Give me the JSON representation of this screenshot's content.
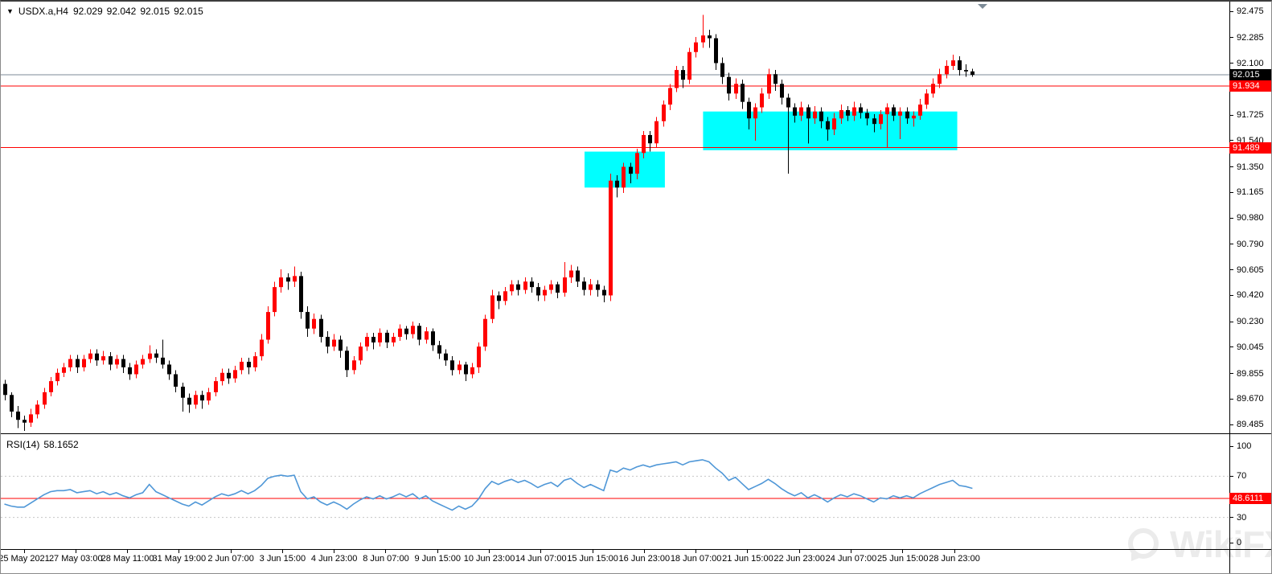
{
  "window": {
    "bg": "#ffffff"
  },
  "colors": {
    "bull": "#ff0000",
    "bear": "#000000",
    "zone_fill": "#00ffff",
    "price_line": "#7d8b97",
    "alert_line": "#ff0000",
    "rsi_line": "#4f97d7",
    "level_dash": "#c6c6c6",
    "axis_text": "#000000",
    "tag_text": "#ffffff",
    "watermark": "#ebebeb"
  },
  "title_overlay": {
    "dropdown_icon": "▼",
    "symbol": "USDX.a,H4",
    "open": "92.029",
    "high": "92.042",
    "low": "92.015",
    "close": "92.015"
  },
  "rsi_overlay": {
    "label": "RSI(14)",
    "value": "58.1652"
  },
  "watermark": {
    "text": "WikiFX"
  },
  "y_axis": {
    "ticks": [
      "92.475",
      "92.285",
      "92.100",
      "91.910",
      "91.725",
      "91.540",
      "91.350",
      "91.165",
      "90.980",
      "90.790",
      "90.605",
      "90.420",
      "90.230",
      "90.045",
      "89.855",
      "89.670",
      "89.485"
    ],
    "tags": [
      {
        "label": "92.015",
        "value": 92.015,
        "bg": "#000000"
      },
      {
        "label": "91.934",
        "value": 91.934,
        "bg": "#ff0000"
      },
      {
        "label": "91.489",
        "value": 91.489,
        "bg": "#ff0000"
      }
    ]
  },
  "rsi_axis": {
    "ticks": [
      "100",
      "70",
      "30",
      "0"
    ],
    "tag": {
      "label": "48.6111",
      "value": 48.6111,
      "bg": "#ff0000"
    }
  },
  "x_axis": {
    "labels": [
      "25 May 2021",
      "27 May 03:00",
      "28 May 11:00",
      "31 May 19:00",
      "2 Jun 07:00",
      "3 Jun 15:00",
      "4 Jun 23:00",
      "8 Jun 07:00",
      "9 Jun 15:00",
      "10 Jun 23:00",
      "14 Jun 07:00",
      "15 Jun 15:00",
      "16 Jun 23:00",
      "18 Jun 07:00",
      "21 Jun 15:00",
      "22 Jun 23:00",
      "24 Jun 07:00",
      "25 Jun 15:00",
      "28 Jun 23:00"
    ]
  },
  "chart_data": [
    {
      "type": "candlestick",
      "title": "USDX.a H4",
      "timeframe": "H4",
      "price_axis_range": [
        89.44,
        92.52
      ],
      "bar_count": 148,
      "series_ohlc": [
        [
          89.78,
          89.81,
          89.66,
          89.7
        ],
        [
          89.7,
          89.72,
          89.54,
          89.58
        ],
        [
          89.58,
          89.62,
          89.46,
          89.52
        ],
        [
          89.52,
          89.55,
          89.44,
          89.5
        ],
        [
          89.5,
          89.6,
          89.47,
          89.56
        ],
        [
          89.56,
          89.66,
          89.53,
          89.63
        ],
        [
          89.63,
          89.75,
          89.6,
          89.72
        ],
        [
          89.72,
          89.83,
          89.69,
          89.8
        ],
        [
          89.8,
          89.89,
          89.77,
          89.86
        ],
        [
          89.86,
          89.93,
          89.83,
          89.9
        ],
        [
          89.9,
          89.99,
          89.87,
          89.96
        ],
        [
          89.96,
          89.99,
          89.86,
          89.9
        ],
        [
          89.9,
          89.99,
          89.87,
          89.96
        ],
        [
          89.96,
          90.03,
          89.93,
          90.0
        ],
        [
          90.0,
          90.03,
          89.91,
          89.95
        ],
        [
          89.95,
          90.02,
          89.92,
          89.98
        ],
        [
          89.98,
          90.01,
          89.88,
          89.92
        ],
        [
          89.92,
          89.99,
          89.89,
          89.96
        ],
        [
          89.96,
          89.99,
          89.86,
          89.9
        ],
        [
          89.9,
          89.93,
          89.81,
          89.85
        ],
        [
          89.85,
          89.95,
          89.82,
          89.92
        ],
        [
          89.92,
          89.99,
          89.89,
          89.96
        ],
        [
          89.96,
          90.06,
          89.93,
          90.0
        ],
        [
          90.0,
          90.03,
          89.93,
          89.97
        ],
        [
          89.97,
          90.1,
          89.89,
          89.92
        ],
        [
          89.92,
          89.95,
          89.81,
          89.85
        ],
        [
          89.85,
          89.88,
          89.72,
          89.76
        ],
        [
          89.76,
          89.79,
          89.58,
          89.68
        ],
        [
          89.68,
          89.71,
          89.57,
          89.63
        ],
        [
          89.63,
          89.73,
          89.6,
          89.7
        ],
        [
          89.7,
          89.73,
          89.6,
          89.66
        ],
        [
          89.66,
          89.75,
          89.63,
          89.72
        ],
        [
          89.72,
          89.83,
          89.69,
          89.8
        ],
        [
          89.8,
          89.89,
          89.77,
          89.86
        ],
        [
          89.86,
          89.89,
          89.78,
          89.82
        ],
        [
          89.82,
          89.91,
          89.79,
          89.88
        ],
        [
          89.88,
          89.97,
          89.85,
          89.94
        ],
        [
          89.94,
          89.97,
          89.85,
          89.9
        ],
        [
          89.9,
          90.01,
          89.87,
          89.98
        ],
        [
          89.98,
          90.14,
          89.95,
          90.1
        ],
        [
          90.1,
          90.34,
          90.07,
          90.3
        ],
        [
          90.3,
          90.52,
          90.27,
          90.48
        ],
        [
          90.48,
          90.61,
          90.44,
          90.55
        ],
        [
          90.55,
          90.58,
          90.46,
          90.52
        ],
        [
          90.52,
          90.63,
          90.48,
          90.56
        ],
        [
          90.56,
          90.59,
          90.25,
          90.3
        ],
        [
          90.3,
          90.34,
          90.12,
          90.18
        ],
        [
          90.18,
          90.29,
          90.14,
          90.25
        ],
        [
          90.25,
          90.28,
          90.08,
          90.12
        ],
        [
          90.12,
          90.16,
          90.0,
          90.05
        ],
        [
          90.05,
          90.14,
          90.02,
          90.1
        ],
        [
          90.1,
          90.13,
          89.97,
          90.02
        ],
        [
          90.02,
          90.05,
          89.83,
          89.88
        ],
        [
          89.88,
          89.98,
          89.85,
          89.95
        ],
        [
          89.95,
          90.08,
          89.92,
          90.05
        ],
        [
          90.05,
          90.15,
          90.02,
          90.12
        ],
        [
          90.12,
          90.15,
          90.03,
          90.08
        ],
        [
          90.08,
          90.18,
          90.05,
          90.15
        ],
        [
          90.15,
          90.17,
          90.04,
          90.08
        ],
        [
          90.08,
          90.15,
          90.05,
          90.12
        ],
        [
          90.12,
          90.21,
          90.09,
          90.18
        ],
        [
          90.18,
          90.2,
          90.1,
          90.14
        ],
        [
          90.14,
          90.23,
          90.11,
          90.2
        ],
        [
          90.2,
          90.22,
          90.06,
          90.1
        ],
        [
          90.1,
          90.19,
          90.07,
          90.16
        ],
        [
          90.16,
          90.18,
          90.02,
          90.06
        ],
        [
          90.06,
          90.09,
          89.96,
          90.0
        ],
        [
          90.0,
          90.03,
          89.91,
          89.95
        ],
        [
          89.95,
          89.98,
          89.84,
          89.88
        ],
        [
          89.88,
          89.95,
          89.85,
          89.92
        ],
        [
          89.92,
          89.94,
          89.8,
          89.85
        ],
        [
          89.85,
          89.93,
          89.82,
          89.9
        ],
        [
          89.9,
          90.08,
          89.86,
          90.05
        ],
        [
          90.05,
          90.28,
          90.02,
          90.25
        ],
        [
          90.25,
          90.46,
          90.22,
          90.42
        ],
        [
          90.42,
          90.45,
          90.32,
          90.38
        ],
        [
          90.38,
          90.48,
          90.35,
          90.45
        ],
        [
          90.45,
          90.53,
          90.42,
          90.5
        ],
        [
          90.5,
          90.53,
          90.42,
          90.46
        ],
        [
          90.46,
          90.55,
          90.43,
          90.52
        ],
        [
          90.52,
          90.55,
          90.44,
          90.48
        ],
        [
          90.48,
          90.51,
          90.38,
          90.42
        ],
        [
          90.42,
          90.49,
          90.38,
          90.46
        ],
        [
          90.46,
          90.53,
          90.43,
          90.5
        ],
        [
          90.5,
          90.52,
          90.4,
          90.44
        ],
        [
          90.44,
          90.66,
          90.41,
          90.55
        ],
        [
          90.55,
          90.64,
          90.51,
          90.6
        ],
        [
          90.6,
          90.63,
          90.48,
          90.52
        ],
        [
          90.52,
          90.55,
          90.42,
          90.46
        ],
        [
          90.46,
          90.54,
          90.42,
          90.5
        ],
        [
          90.5,
          90.53,
          90.41,
          90.46
        ],
        [
          90.46,
          90.49,
          90.37,
          90.42
        ],
        [
          90.42,
          91.3,
          90.38,
          91.25
        ],
        [
          91.25,
          91.29,
          91.13,
          91.2
        ],
        [
          91.2,
          91.38,
          91.16,
          91.35
        ],
        [
          91.35,
          91.38,
          91.23,
          91.3
        ],
        [
          91.3,
          91.48,
          91.26,
          91.45
        ],
        [
          91.45,
          91.61,
          91.41,
          91.58
        ],
        [
          91.58,
          91.61,
          91.46,
          91.52
        ],
        [
          91.52,
          91.71,
          91.49,
          91.68
        ],
        [
          91.68,
          91.83,
          91.64,
          91.8
        ],
        [
          91.8,
          91.95,
          91.76,
          91.92
        ],
        [
          91.92,
          92.08,
          91.89,
          92.05
        ],
        [
          92.05,
          92.08,
          91.92,
          91.98
        ],
        [
          91.98,
          92.21,
          91.95,
          92.18
        ],
        [
          92.18,
          92.29,
          92.14,
          92.25
        ],
        [
          92.25,
          92.45,
          92.21,
          92.3
        ],
        [
          92.3,
          92.34,
          92.21,
          92.28
        ],
        [
          92.28,
          92.31,
          92.05,
          92.1
        ],
        [
          92.1,
          92.14,
          91.95,
          92.0
        ],
        [
          92.0,
          92.03,
          91.83,
          91.88
        ],
        [
          91.88,
          91.99,
          91.84,
          91.95
        ],
        [
          91.95,
          91.98,
          91.77,
          91.82
        ],
        [
          91.82,
          91.85,
          91.62,
          91.7
        ],
        [
          91.7,
          91.81,
          91.54,
          91.78
        ],
        [
          91.78,
          91.92,
          91.74,
          91.88
        ],
        [
          91.88,
          92.06,
          91.84,
          92.02
        ],
        [
          92.02,
          92.05,
          91.9,
          91.95
        ],
        [
          91.95,
          91.98,
          91.8,
          91.85
        ],
        [
          91.85,
          91.88,
          91.3,
          91.78
        ],
        [
          91.78,
          91.81,
          91.67,
          91.72
        ],
        [
          91.72,
          91.82,
          91.68,
          91.78
        ],
        [
          91.78,
          91.8,
          91.52,
          91.7
        ],
        [
          91.7,
          91.79,
          91.66,
          91.75
        ],
        [
          91.75,
          91.78,
          91.63,
          91.68
        ],
        [
          91.68,
          91.71,
          91.54,
          91.62
        ],
        [
          91.62,
          91.74,
          91.58,
          91.7
        ],
        [
          91.7,
          91.8,
          91.66,
          91.76
        ],
        [
          91.76,
          91.79,
          91.68,
          91.72
        ],
        [
          91.72,
          91.82,
          91.68,
          91.78
        ],
        [
          91.78,
          91.81,
          91.7,
          91.74
        ],
        [
          91.74,
          91.77,
          91.65,
          91.7
        ],
        [
          91.7,
          91.73,
          91.6,
          91.66
        ],
        [
          91.66,
          91.76,
          91.62,
          91.73
        ],
        [
          91.73,
          91.81,
          91.49,
          91.78
        ],
        [
          91.78,
          91.8,
          91.68,
          91.72
        ],
        [
          91.72,
          91.78,
          91.55,
          91.75
        ],
        [
          91.75,
          91.78,
          91.66,
          91.7
        ],
        [
          91.7,
          91.75,
          91.64,
          91.72
        ],
        [
          91.72,
          91.84,
          91.69,
          91.8
        ],
        [
          91.8,
          91.91,
          91.77,
          91.88
        ],
        [
          91.88,
          91.99,
          91.85,
          91.95
        ],
        [
          91.95,
          92.06,
          91.92,
          92.02
        ],
        [
          92.02,
          92.12,
          91.99,
          92.08
        ],
        [
          92.08,
          92.16,
          92.05,
          92.12
        ],
        [
          92.12,
          92.15,
          92.01,
          92.05
        ],
        [
          92.05,
          92.09,
          92.0,
          92.04
        ],
        [
          92.04,
          92.06,
          92.0,
          92.015
        ]
      ],
      "overlays": {
        "horizontal_lines": [
          {
            "name": "current-price-line",
            "price": 92.015,
            "color": "#7d8b97"
          },
          {
            "name": "resistance-line",
            "price": 91.934,
            "color": "#ff0000"
          },
          {
            "name": "support-line",
            "price": 91.489,
            "color": "#ff0000"
          }
        ],
        "rectangles": [
          {
            "name": "demand-zone-1",
            "bar_start": 88.4,
            "bar_end": 100.6,
            "price_top": 91.46,
            "price_bottom": 91.2
          },
          {
            "name": "demand-zone-2",
            "bar_start": 106.4,
            "bar_end": 145.0,
            "price_top": 91.75,
            "price_bottom": 91.47
          }
        ]
      }
    },
    {
      "type": "line",
      "name": "RSI",
      "period": 14,
      "display_value": 58.1652,
      "alert_level": 48.6111,
      "levels": [
        70,
        30
      ],
      "y_range": [
        0,
        100
      ],
      "values": [
        43,
        41,
        40,
        40,
        44,
        48,
        52,
        55,
        56,
        56,
        57,
        54,
        55,
        56,
        53,
        55,
        52,
        54,
        51,
        49,
        52,
        54,
        62,
        55,
        52,
        49,
        46,
        43,
        41,
        45,
        42,
        46,
        50,
        53,
        51,
        53,
        56,
        53,
        56,
        61,
        68,
        70,
        71,
        70,
        71,
        55,
        48,
        50,
        45,
        42,
        45,
        42,
        38,
        43,
        47,
        50,
        48,
        51,
        48,
        50,
        53,
        50,
        53,
        48,
        51,
        46,
        43,
        40,
        37,
        41,
        38,
        41,
        48,
        58,
        65,
        62,
        65,
        67,
        64,
        66,
        63,
        59,
        62,
        64,
        60,
        66,
        68,
        63,
        59,
        62,
        59,
        56,
        76,
        74,
        78,
        76,
        79,
        81,
        79,
        81,
        82,
        83,
        84,
        81,
        84,
        85,
        86,
        84,
        78,
        73,
        66,
        69,
        63,
        57,
        60,
        63,
        67,
        63,
        58,
        54,
        51,
        54,
        49,
        52,
        49,
        45,
        49,
        52,
        50,
        53,
        51,
        48,
        45,
        49,
        48,
        51,
        49,
        51,
        49,
        53,
        56,
        59,
        62,
        64,
        66,
        61,
        60,
        58.2
      ]
    }
  ]
}
